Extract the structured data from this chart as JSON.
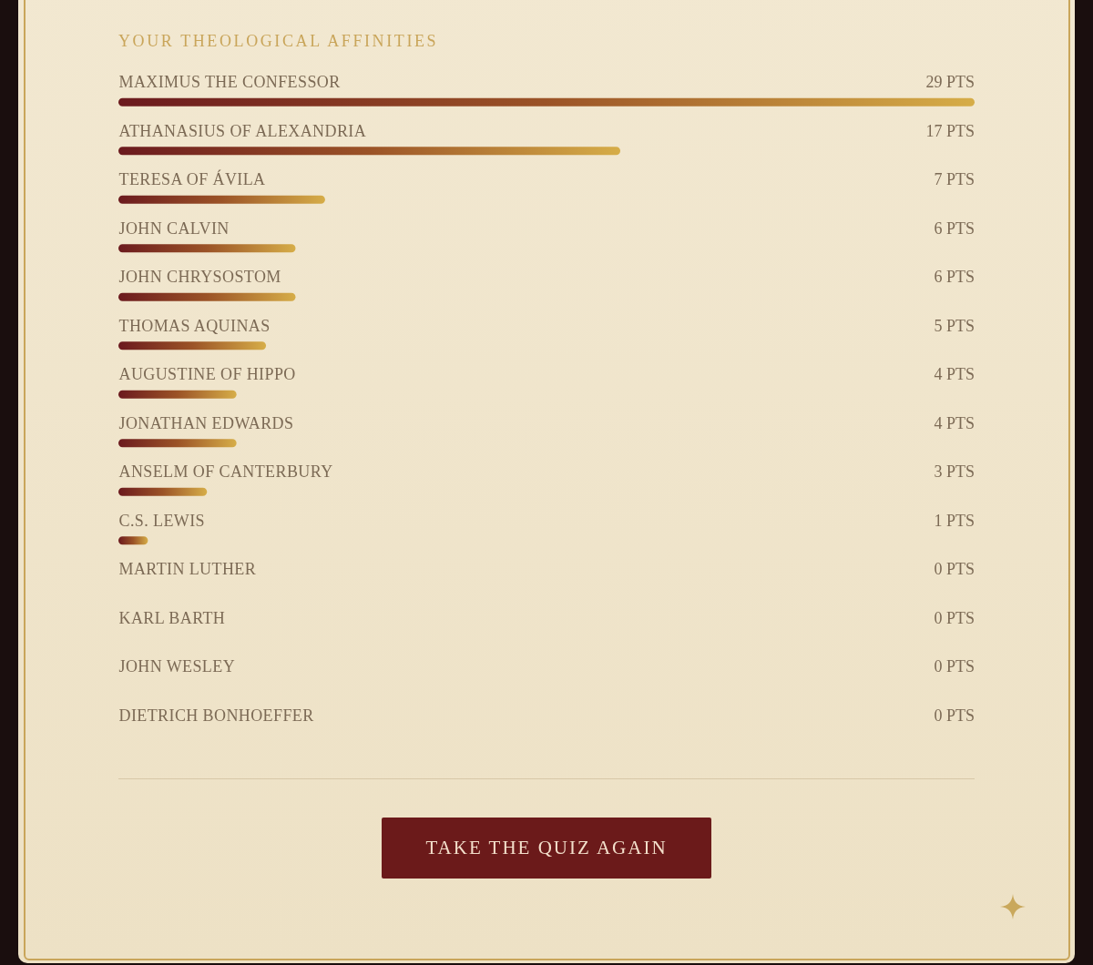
{
  "chart_data": {
    "type": "bar",
    "orientation": "horizontal",
    "title": "YOUR THEOLOGICAL AFFINITIES",
    "categories": [
      "MAXIMUS THE CONFESSOR",
      "ATHANASIUS OF ALEXANDRIA",
      "TERESA OF ÁVILA",
      "JOHN CALVIN",
      "JOHN CHRYSOSTOM",
      "THOMAS AQUINAS",
      "AUGUSTINE OF HIPPO",
      "JONATHAN EDWARDS",
      "ANSELM OF CANTERBURY",
      "C.S. LEWIS",
      "MARTIN LUTHER",
      "KARL BARTH",
      "JOHN WESLEY",
      "DIETRICH BONHOEFFER"
    ],
    "values": [
      29,
      17,
      7,
      6,
      6,
      5,
      4,
      4,
      3,
      1,
      0,
      0,
      0,
      0
    ],
    "value_labels": [
      "29 PTS",
      "17 PTS",
      "7 PTS",
      "6 PTS",
      "6 PTS",
      "5 PTS",
      "4 PTS",
      "4 PTS",
      "3 PTS",
      "1 PTS",
      "0 PTS",
      "0 PTS",
      "0 PTS",
      "0 PTS"
    ],
    "color": "#9b5327",
    "xlim": [
      0,
      29
    ],
    "tick_labels": "y",
    "annotations": [
      "TAKE THE QUIZ AGAIN"
    ]
  }
}
